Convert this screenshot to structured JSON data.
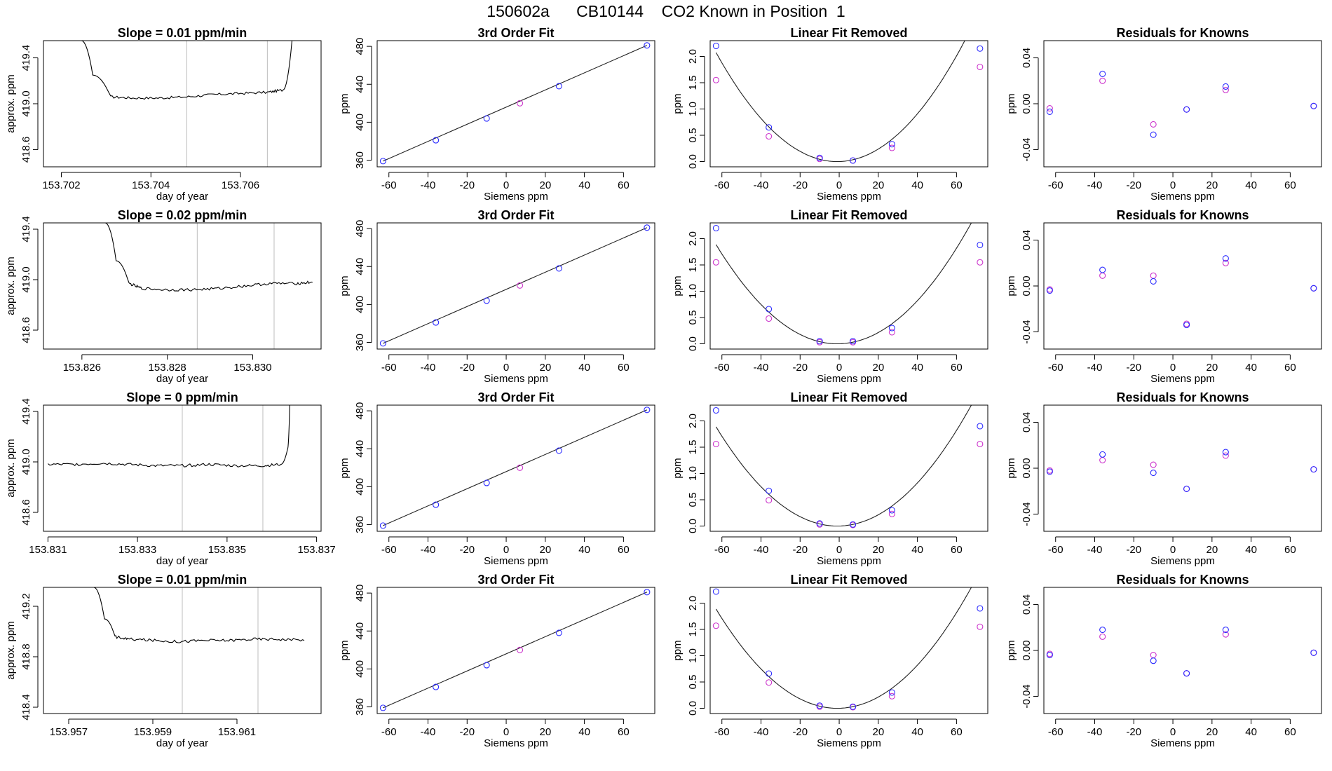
{
  "figure_title": "150602a      CB10144    CO2 Known in Position  1",
  "colors": {
    "primary_points": "#2b2bff",
    "secondary_points": "#cc33cc",
    "line": "#000000",
    "cutoff_lines": "#bdbdbd"
  },
  "chart_data": [
    {
      "row": 1,
      "col": 1,
      "type": "line",
      "title": "Slope =  0.01  ppm/min",
      "xlabel": "day of year",
      "ylabel": "approx. ppm",
      "xlim": [
        153.7016,
        153.7078
      ],
      "ylim": [
        418.45,
        419.55
      ],
      "xticks": [
        153.702,
        153.704,
        153.706
      ],
      "xticklabels": [
        "153.702",
        "153.704",
        "153.706"
      ],
      "yticks": [
        418.6,
        419.0,
        419.4
      ],
      "yticklabels": [
        "418.6",
        "419.0",
        "419.4"
      ],
      "x": [
        153.70245,
        153.7027,
        153.7031,
        153.7036,
        153.7042,
        153.7048,
        153.7054,
        153.706,
        153.7066,
        153.70695,
        153.70715
      ],
      "y": [
        419.55,
        419.25,
        419.06,
        419.05,
        419.05,
        419.06,
        419.08,
        419.09,
        419.1,
        419.12,
        419.55
      ],
      "cutoffs": [
        153.7048,
        153.7066
      ]
    },
    {
      "row": 1,
      "col": 2,
      "type": "scatter",
      "title": "3rd Order Fit",
      "xlabel": "Siemens ppm",
      "ylabel": "ppm",
      "xlim": [
        -66,
        76
      ],
      "ylim": [
        353,
        486
      ],
      "xticks": [
        -60,
        -40,
        -20,
        0,
        20,
        40,
        60
      ],
      "xticklabels": [
        "-60",
        "-40",
        "-20",
        "0",
        "20",
        "40",
        "60"
      ],
      "yticks": [
        360,
        400,
        440,
        480
      ],
      "yticklabels": [
        "360",
        "400",
        "440",
        "480"
      ],
      "x": [
        -63,
        -36,
        -10,
        7,
        27,
        72
      ],
      "y": [
        359,
        381,
        404,
        420,
        438,
        481
      ],
      "secondary_index": [
        3
      ]
    },
    {
      "row": 1,
      "col": 3,
      "type": "scatter",
      "title": "Linear Fit Removed",
      "xlabel": "Siemens ppm",
      "ylabel": "ppm",
      "xlim": [
        -66,
        76
      ],
      "ylim": [
        -0.1,
        2.3
      ],
      "xticks": [
        -60,
        -40,
        -20,
        0,
        20,
        40,
        60
      ],
      "xticklabels": [
        "-60",
        "-40",
        "-20",
        "0",
        "20",
        "40",
        "60"
      ],
      "yticks": [
        0.0,
        0.5,
        1.0,
        1.5,
        2.0
      ],
      "yticklabels": [
        "0.0",
        "0.5",
        "1.0",
        "1.5",
        "2.0"
      ],
      "x": [
        -63,
        -36,
        -10,
        7,
        27,
        72
      ],
      "y": [
        2.2,
        0.65,
        0.07,
        0.02,
        0.33,
        2.15
      ],
      "y_secondary": [
        1.55,
        0.48,
        0.05,
        0.02,
        0.26,
        1.8
      ],
      "fit": [
        0.00054,
        0.0011,
        0.0
      ]
    },
    {
      "row": 1,
      "col": 4,
      "type": "scatter",
      "title": "Residuals for Knowns",
      "xlabel": "Siemens ppm",
      "ylabel": "ppm",
      "xlim": [
        -66,
        76
      ],
      "ylim": [
        -0.055,
        0.055
      ],
      "xticks": [
        -60,
        -40,
        -20,
        0,
        20,
        40,
        60
      ],
      "xticklabels": [
        "-60",
        "-40",
        "-20",
        "0",
        "20",
        "40",
        "60"
      ],
      "yticks": [
        -0.04,
        0.0,
        0.04
      ],
      "yticklabels": [
        "-0.04",
        "0.00",
        "0.04"
      ],
      "x": [
        -63,
        -36,
        -10,
        7,
        27,
        72
      ],
      "y": [
        -0.007,
        0.026,
        -0.027,
        -0.005,
        0.015,
        -0.002
      ],
      "y_secondary": [
        -0.004,
        0.02,
        -0.018,
        -0.005,
        0.012,
        -0.002
      ]
    },
    {
      "row": 2,
      "col": 1,
      "type": "line",
      "title": "Slope =  0.02  ppm/min",
      "xlabel": "day of year",
      "ylabel": "approx. ppm",
      "xlim": [
        153.8251,
        153.8316
      ],
      "ylim": [
        418.45,
        419.45
      ],
      "xticks": [
        153.826,
        153.828,
        153.83
      ],
      "xticklabels": [
        "153.826",
        "153.828",
        "153.830"
      ],
      "yticks": [
        418.6,
        419.0,
        419.4
      ],
      "yticklabels": [
        "418.6",
        "419.0",
        "419.4"
      ],
      "x": [
        153.82655,
        153.8268,
        153.8271,
        153.8274,
        153.828,
        153.8286,
        153.8292,
        153.8298,
        153.8304,
        153.831,
        153.8314
      ],
      "y": [
        419.45,
        419.15,
        418.97,
        418.93,
        418.92,
        418.92,
        418.93,
        418.95,
        418.97,
        418.97,
        418.98
      ],
      "cutoffs": [
        153.8287,
        153.8305
      ]
    },
    {
      "row": 2,
      "col": 2,
      "type": "scatter",
      "title": "3rd Order Fit",
      "xlabel": "Siemens ppm",
      "ylabel": "ppm",
      "xlim": [
        -66,
        76
      ],
      "ylim": [
        353,
        486
      ],
      "xticks": [
        -60,
        -40,
        -20,
        0,
        20,
        40,
        60
      ],
      "xticklabels": [
        "-60",
        "-40",
        "-20",
        "0",
        "20",
        "40",
        "60"
      ],
      "yticks": [
        360,
        400,
        440,
        480
      ],
      "yticklabels": [
        "360",
        "400",
        "440",
        "480"
      ],
      "x": [
        -63,
        -36,
        -10,
        7,
        27,
        72
      ],
      "y": [
        359,
        381,
        404,
        420,
        438,
        481
      ],
      "secondary_index": [
        3
      ]
    },
    {
      "row": 2,
      "col": 3,
      "type": "scatter",
      "title": "Linear Fit Removed",
      "xlabel": "Siemens ppm",
      "ylabel": "ppm",
      "xlim": [
        -66,
        76
      ],
      "ylim": [
        -0.1,
        2.3
      ],
      "xticks": [
        -60,
        -40,
        -20,
        0,
        20,
        40,
        60
      ],
      "xticklabels": [
        "-60",
        "-40",
        "-20",
        "0",
        "20",
        "40",
        "60"
      ],
      "yticks": [
        0.0,
        0.5,
        1.0,
        1.5,
        2.0
      ],
      "yticklabels": [
        "0.0",
        "0.5",
        "1.0",
        "1.5",
        "2.0"
      ],
      "x": [
        -63,
        -36,
        -10,
        7,
        27,
        72
      ],
      "y": [
        2.2,
        0.66,
        0.05,
        0.05,
        0.3,
        1.88
      ],
      "y_secondary": [
        1.55,
        0.48,
        0.03,
        0.03,
        0.22,
        1.55
      ],
      "fit": [
        0.00049,
        0.0009,
        0.0
      ]
    },
    {
      "row": 2,
      "col": 4,
      "type": "scatter",
      "title": "Residuals for Knowns",
      "xlabel": "Siemens ppm",
      "ylabel": "ppm",
      "xlim": [
        -66,
        76
      ],
      "ylim": [
        -0.055,
        0.055
      ],
      "xticks": [
        -60,
        -40,
        -20,
        0,
        20,
        40,
        60
      ],
      "xticklabels": [
        "-60",
        "-40",
        "-20",
        "0",
        "20",
        "40",
        "60"
      ],
      "yticks": [
        -0.04,
        0.0,
        0.04
      ],
      "yticklabels": [
        "-0.04",
        "0.00",
        "0.04"
      ],
      "x": [
        -63,
        -36,
        -10,
        7,
        27,
        72
      ],
      "y": [
        -0.004,
        0.014,
        0.004,
        -0.034,
        0.024,
        -0.002
      ],
      "y_secondary": [
        -0.003,
        0.009,
        0.009,
        -0.033,
        0.02,
        -0.002
      ]
    },
    {
      "row": 3,
      "col": 1,
      "type": "line",
      "title": "Slope =  0  ppm/min",
      "xlabel": "day of year",
      "ylabel": "approx. ppm",
      "xlim": [
        153.8309,
        153.8371
      ],
      "ylim": [
        418.45,
        419.45
      ],
      "xticks": [
        153.831,
        153.833,
        153.835,
        153.837
      ],
      "xticklabels": [
        "153.831",
        "153.833",
        "153.835",
        "153.837"
      ],
      "yticks": [
        418.6,
        419.0,
        419.4
      ],
      "yticklabels": [
        "418.6",
        "419.0",
        "419.4"
      ],
      "x": [
        153.831,
        153.8316,
        153.8322,
        153.8328,
        153.8334,
        153.834,
        153.8346,
        153.8352,
        153.8358,
        153.8362,
        153.83635,
        153.8364
      ],
      "y": [
        418.98,
        418.98,
        418.99,
        418.98,
        418.97,
        418.97,
        418.98,
        418.97,
        418.97,
        418.98,
        419.1,
        419.45
      ],
      "cutoffs": [
        153.834,
        153.8358
      ]
    },
    {
      "row": 3,
      "col": 2,
      "type": "scatter",
      "title": "3rd Order Fit",
      "xlabel": "Siemens ppm",
      "ylabel": "ppm",
      "xlim": [
        -66,
        76
      ],
      "ylim": [
        353,
        486
      ],
      "xticks": [
        -60,
        -40,
        -20,
        0,
        20,
        40,
        60
      ],
      "xticklabels": [
        "-60",
        "-40",
        "-20",
        "0",
        "20",
        "40",
        "60"
      ],
      "yticks": [
        360,
        400,
        440,
        480
      ],
      "yticklabels": [
        "360",
        "400",
        "440",
        "480"
      ],
      "x": [
        -63,
        -36,
        -10,
        7,
        27,
        72
      ],
      "y": [
        359,
        381,
        404,
        420,
        438,
        481
      ],
      "secondary_index": [
        3
      ]
    },
    {
      "row": 3,
      "col": 3,
      "type": "scatter",
      "title": "Linear Fit Removed",
      "xlabel": "Siemens ppm",
      "ylabel": "ppm",
      "xlim": [
        -66,
        76
      ],
      "ylim": [
        -0.1,
        2.3
      ],
      "xticks": [
        -60,
        -40,
        -20,
        0,
        20,
        40,
        60
      ],
      "xticklabels": [
        "-60",
        "-40",
        "-20",
        "0",
        "20",
        "40",
        "60"
      ],
      "yticks": [
        0.0,
        0.5,
        1.0,
        1.5,
        2.0
      ],
      "yticklabels": [
        "0.0",
        "0.5",
        "1.0",
        "1.5",
        "2.0"
      ],
      "x": [
        -63,
        -36,
        -10,
        7,
        27,
        72
      ],
      "y": [
        2.2,
        0.67,
        0.05,
        0.03,
        0.3,
        1.9
      ],
      "y_secondary": [
        1.56,
        0.49,
        0.03,
        0.02,
        0.23,
        1.56
      ],
      "fit": [
        0.00049,
        0.0009,
        0.0
      ]
    },
    {
      "row": 3,
      "col": 4,
      "type": "scatter",
      "title": "Residuals for Knowns",
      "xlabel": "Siemens ppm",
      "ylabel": "ppm",
      "xlim": [
        -66,
        76
      ],
      "ylim": [
        -0.055,
        0.055
      ],
      "xticks": [
        -60,
        -40,
        -20,
        0,
        20,
        40,
        60
      ],
      "xticklabels": [
        "-60",
        "-40",
        "-20",
        "0",
        "20",
        "40",
        "60"
      ],
      "yticks": [
        -0.04,
        0.0,
        0.04
      ],
      "yticklabels": [
        "-0.04",
        "0.00",
        "0.04"
      ],
      "x": [
        -63,
        -36,
        -10,
        7,
        27,
        72
      ],
      "y": [
        -0.003,
        0.012,
        -0.004,
        -0.018,
        0.014,
        -0.001
      ],
      "y_secondary": [
        -0.002,
        0.007,
        0.003,
        -0.018,
        0.011,
        -0.001
      ]
    },
    {
      "row": 4,
      "col": 1,
      "type": "line",
      "title": "Slope =  0.01  ppm/min",
      "xlabel": "day of year",
      "ylabel": "approx. ppm",
      "xlim": [
        153.9564,
        153.963
      ],
      "ylim": [
        418.35,
        419.35
      ],
      "xticks": [
        153.957,
        153.959,
        153.961
      ],
      "xticklabels": [
        "153.957",
        "153.959",
        "153.961"
      ],
      "yticks": [
        418.4,
        418.8,
        419.2
      ],
      "yticklabels": [
        "418.4",
        "418.8",
        "419.2"
      ],
      "x": [
        153.9576,
        153.95785,
        153.9581,
        153.9584,
        153.959,
        153.9596,
        153.9602,
        153.9608,
        153.9614,
        153.962,
        153.9626
      ],
      "y": [
        419.35,
        419.1,
        418.96,
        418.94,
        418.93,
        418.92,
        418.93,
        418.93,
        418.94,
        418.94,
        418.93
      ],
      "cutoffs": [
        153.9597,
        153.9615
      ]
    },
    {
      "row": 4,
      "col": 2,
      "type": "scatter",
      "title": "3rd Order Fit",
      "xlabel": "Siemens ppm",
      "ylabel": "ppm",
      "xlim": [
        -66,
        76
      ],
      "ylim": [
        353,
        486
      ],
      "xticks": [
        -60,
        -40,
        -20,
        0,
        20,
        40,
        60
      ],
      "xticklabels": [
        "-60",
        "-40",
        "-20",
        "0",
        "20",
        "40",
        "60"
      ],
      "yticks": [
        360,
        400,
        440,
        480
      ],
      "yticklabels": [
        "360",
        "400",
        "440",
        "480"
      ],
      "x": [
        -63,
        -36,
        -10,
        7,
        27,
        72
      ],
      "y": [
        359,
        381,
        404,
        420,
        438,
        481
      ],
      "secondary_index": [
        3
      ]
    },
    {
      "row": 4,
      "col": 3,
      "type": "scatter",
      "title": "Linear Fit Removed",
      "xlabel": "Siemens ppm",
      "ylabel": "ppm",
      "xlim": [
        -66,
        76
      ],
      "ylim": [
        -0.1,
        2.3
      ],
      "xticks": [
        -60,
        -40,
        -20,
        0,
        20,
        40,
        60
      ],
      "xticklabels": [
        "-60",
        "-40",
        "-20",
        "0",
        "20",
        "40",
        "60"
      ],
      "yticks": [
        0.0,
        0.5,
        1.0,
        1.5,
        2.0
      ],
      "yticklabels": [
        "0.0",
        "0.5",
        "1.0",
        "1.5",
        "2.0"
      ],
      "x": [
        -63,
        -36,
        -10,
        7,
        27,
        72
      ],
      "y": [
        2.22,
        0.66,
        0.05,
        0.03,
        0.3,
        1.9
      ],
      "y_secondary": [
        1.57,
        0.49,
        0.03,
        0.02,
        0.23,
        1.55
      ],
      "fit": [
        0.00049,
        0.0009,
        0.0
      ]
    },
    {
      "row": 4,
      "col": 4,
      "type": "scatter",
      "title": "Residuals for Knowns",
      "xlabel": "Siemens ppm",
      "ylabel": "ppm",
      "xlim": [
        -66,
        76
      ],
      "ylim": [
        -0.055,
        0.055
      ],
      "xticks": [
        -60,
        -40,
        -20,
        0,
        20,
        40,
        60
      ],
      "xticklabels": [
        "-60",
        "-40",
        "-20",
        "0",
        "20",
        "40",
        "60"
      ],
      "yticks": [
        -0.04,
        0.0,
        0.04
      ],
      "yticklabels": [
        "-0.04",
        "0.00",
        "0.04"
      ],
      "x": [
        -63,
        -36,
        -10,
        7,
        27,
        72
      ],
      "y": [
        -0.004,
        0.018,
        -0.009,
        -0.02,
        0.018,
        -0.002
      ],
      "y_secondary": [
        -0.003,
        0.012,
        -0.004,
        -0.02,
        0.014,
        -0.002
      ]
    }
  ]
}
